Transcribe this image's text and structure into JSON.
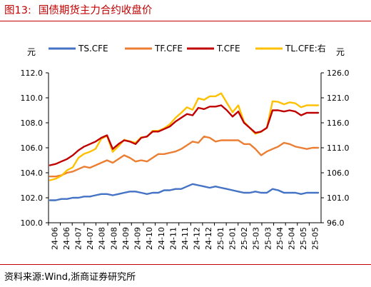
{
  "header": {
    "figure_number": "图13:",
    "title": "国债期货主力合约收盘价"
  },
  "footer": {
    "source": "资料来源:Wind,浙商证券研究所"
  },
  "chart_data": {
    "type": "line",
    "title": "国债期货主力合约收盘价",
    "left_axis": {
      "unit": "元",
      "range": [
        100,
        112
      ],
      "ticks": [
        "100.0",
        "102.0",
        "104.0",
        "106.0",
        "108.0",
        "110.0",
        "112.0"
      ]
    },
    "right_axis": {
      "unit": "元",
      "range": [
        96,
        126
      ],
      "ticks": [
        "96.0",
        "101.0",
        "106.0",
        "111.0",
        "116.0",
        "121.0",
        "126.0"
      ]
    },
    "x_axis": {
      "labels": [
        "24-06",
        "24-06",
        "24-07",
        "24-07",
        "24-08",
        "24-08",
        "24-09",
        "24-09",
        "24-10",
        "24-10",
        "24-11",
        "24-11",
        "24-12",
        "24-12",
        "25-01",
        "25-01",
        "25-02",
        "25-03",
        "25-03",
        "25-04",
        "25-04",
        "25-05",
        "25-05"
      ]
    },
    "legend": {
      "position": "top"
    },
    "series": [
      {
        "name": "TS.CFE",
        "axis": "left",
        "color": "#4472c4",
        "values": [
          101.8,
          101.8,
          101.9,
          101.9,
          102.0,
          102.0,
          102.1,
          102.1,
          102.2,
          102.3,
          102.3,
          102.2,
          102.3,
          102.4,
          102.5,
          102.5,
          102.4,
          102.3,
          102.4,
          102.4,
          102.6,
          102.6,
          102.7,
          102.7,
          102.9,
          103.1,
          103.0,
          102.9,
          102.8,
          102.9,
          102.8,
          102.7,
          102.6,
          102.5,
          102.4,
          102.4,
          102.5,
          102.4,
          102.4,
          102.7,
          102.6,
          102.4,
          102.4,
          102.4,
          102.3,
          102.4,
          102.4,
          102.4
        ]
      },
      {
        "name": "TF.CFE",
        "axis": "left",
        "color": "#ed7d31",
        "values": [
          103.7,
          103.7,
          103.8,
          104.0,
          104.1,
          104.3,
          104.5,
          104.4,
          104.6,
          104.8,
          105.0,
          104.8,
          105.1,
          105.4,
          105.2,
          104.9,
          105.0,
          104.9,
          105.2,
          105.5,
          105.5,
          105.6,
          105.7,
          105.9,
          106.2,
          106.5,
          106.4,
          106.9,
          106.8,
          106.5,
          106.6,
          106.6,
          106.6,
          106.6,
          106.3,
          106.3,
          105.9,
          105.4,
          105.7,
          105.9,
          106.1,
          106.4,
          106.3,
          106.1,
          106.0,
          105.9,
          106.0,
          106.0
        ]
      },
      {
        "name": "T.CFE",
        "axis": "left",
        "color": "#c00000",
        "values": [
          104.6,
          104.7,
          104.9,
          105.1,
          105.4,
          105.8,
          106.1,
          106.3,
          106.5,
          106.8,
          107.0,
          105.9,
          106.3,
          106.6,
          106.5,
          106.3,
          106.8,
          106.9,
          107.3,
          107.3,
          107.5,
          107.7,
          108.1,
          108.4,
          108.7,
          108.6,
          109.2,
          109.1,
          109.3,
          109.3,
          109.4,
          109.0,
          108.5,
          108.9,
          108.0,
          107.6,
          107.2,
          107.3,
          107.6,
          109.0,
          109.0,
          108.9,
          109.0,
          108.9,
          108.6,
          108.8,
          108.8,
          108.8
        ]
      },
      {
        "name": "TL.CFE:右",
        "axis": "right",
        "color": "#ffc000",
        "values": [
          104.5,
          104.8,
          105.4,
          106.5,
          107.1,
          109.0,
          109.8,
          110.2,
          110.8,
          112.8,
          113.4,
          110.2,
          111.3,
          112.6,
          112.3,
          112.0,
          113.1,
          113.2,
          114.4,
          114.4,
          114.9,
          115.7,
          117.0,
          118.0,
          119.1,
          118.6,
          120.9,
          120.6,
          121.3,
          121.3,
          121.9,
          120.0,
          118.1,
          119.5,
          116.2,
          115.0,
          113.8,
          114.2,
          115.0,
          120.3,
          120.2,
          119.7,
          120.1,
          119.9,
          119.1,
          119.5,
          119.5,
          119.5
        ]
      }
    ],
    "grid": false
  }
}
